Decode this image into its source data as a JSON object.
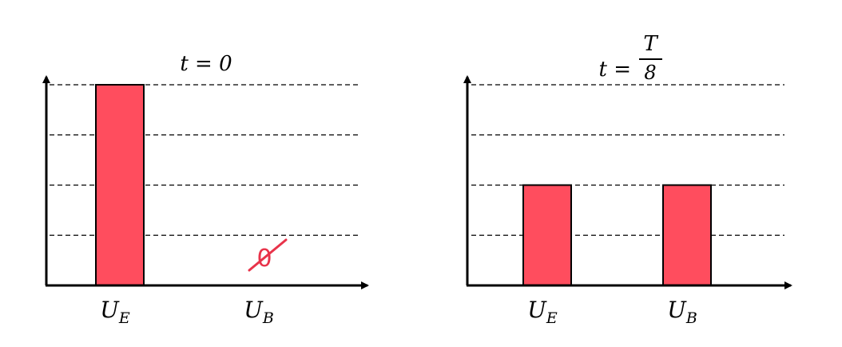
{
  "chart_data": [
    {
      "type": "bar",
      "title": "t = 0",
      "categories": [
        "U_E",
        "U_B"
      ],
      "category_labels": [
        {
          "main": "U",
          "sub": "E"
        },
        {
          "main": "U",
          "sub": "B"
        }
      ],
      "values": [
        4,
        0
      ],
      "ylim": [
        0,
        4
      ],
      "grid": "dashed horizontal",
      "annotation": {
        "text": "0",
        "style": "handwritten crossed-out zero",
        "color": "#e8334a"
      }
    },
    {
      "type": "bar",
      "title": {
        "prefix": "t =",
        "numerator": "T",
        "denominator": "8"
      },
      "categories": [
        "U_E",
        "U_B"
      ],
      "category_labels": [
        {
          "main": "U",
          "sub": "E"
        },
        {
          "main": "U",
          "sub": "B"
        }
      ],
      "values": [
        2,
        2
      ],
      "ylim": [
        0,
        4
      ],
      "grid": "dashed horizontal"
    }
  ],
  "colors": {
    "bar_fill": "#ff4d5e",
    "bar_stroke": "#000000",
    "annotation": "#e8334a"
  }
}
